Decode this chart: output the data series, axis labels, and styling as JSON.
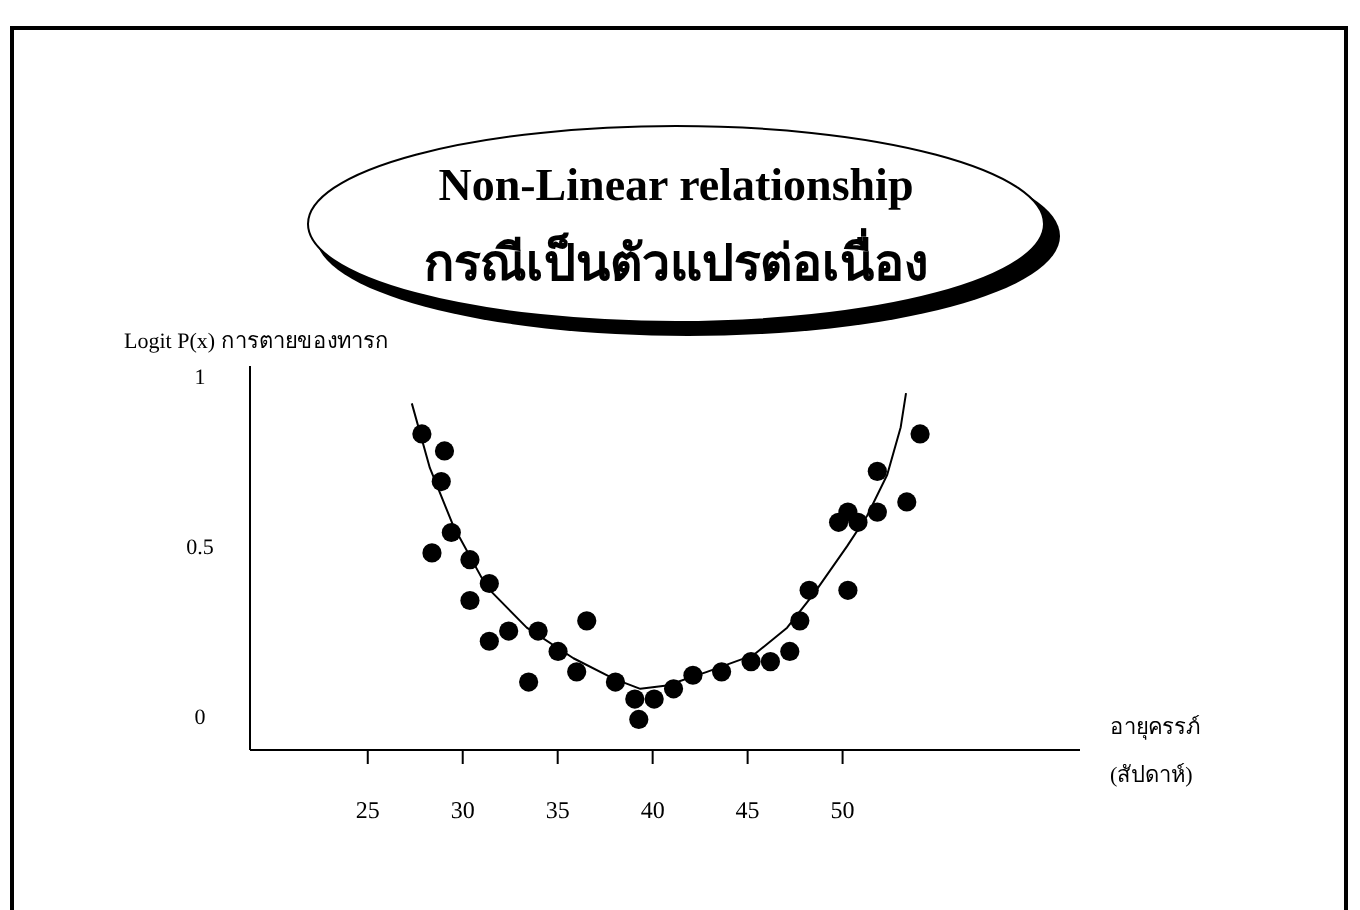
{
  "chart_data": {
    "type": "scatter",
    "title": "Non-Linear relationship",
    "subtitle": "กรณีเป็นตัวแปรต่อเนื่อง",
    "xlabel": "อายุครรภ์\n(สัปดาห์)",
    "ylabel": "Logit P(x) การตายของทารก",
    "line_style": "solid",
    "xlim": [
      18.8,
      62.5
    ],
    "ylim": [
      -0.1,
      1.03
    ],
    "xticks": [
      25,
      30,
      35,
      40,
      45,
      50
    ],
    "yticks": [
      0,
      0.5,
      1
    ],
    "series": [
      {
        "marker": "circle",
        "color": "#000000",
        "x": [
          27.85,
          29.04,
          28.38,
          28.87,
          29.4,
          30.38,
          30.38,
          31.4,
          31.4,
          32.42,
          33.47,
          33.97,
          35.02,
          36.0,
          36.53,
          38.04,
          39.06,
          39.27,
          40.08,
          41.1,
          42.12,
          43.63,
          45.18,
          46.2,
          47.22,
          47.75,
          48.24,
          49.79,
          50.28,
          50.28,
          50.81,
          51.83,
          51.83,
          53.38,
          54.08
        ],
        "values": [
          0.83,
          0.78,
          0.48,
          0.69,
          0.54,
          0.46,
          0.34,
          0.39,
          0.22,
          0.25,
          0.1,
          0.25,
          0.19,
          0.13,
          0.28,
          0.1,
          0.05,
          -0.01,
          0.05,
          0.08,
          0.12,
          0.13,
          0.16,
          0.16,
          0.19,
          0.28,
          0.37,
          0.57,
          0.6,
          0.37,
          0.57,
          0.72,
          0.6,
          0.63,
          0.83
        ]
      },
      {
        "type": "line",
        "marker": "none",
        "color": "#000000",
        "x": [
          27.32,
          28.27,
          29.5,
          31.26,
          33.37,
          35.83,
          37.94,
          39.35,
          40.75,
          42.86,
          45.33,
          47.08,
          48.49,
          50.24,
          51.3,
          52.35,
          53.06,
          53.34
        ],
        "values": [
          0.92,
          0.73,
          0.56,
          0.38,
          0.26,
          0.17,
          0.11,
          0.08,
          0.09,
          0.13,
          0.18,
          0.26,
          0.36,
          0.5,
          0.59,
          0.71,
          0.85,
          0.95
        ]
      }
    ]
  }
}
